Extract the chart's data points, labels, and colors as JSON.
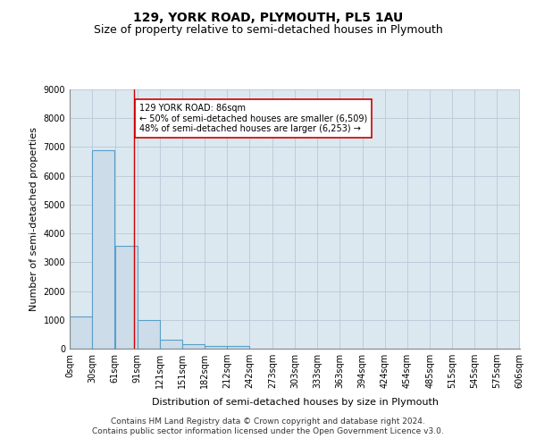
{
  "title": "129, YORK ROAD, PLYMOUTH, PL5 1AU",
  "subtitle": "Size of property relative to semi-detached houses in Plymouth",
  "xlabel": "Distribution of semi-detached houses by size in Plymouth",
  "ylabel": "Number of semi-detached properties",
  "bar_values": [
    1130,
    6880,
    3560,
    1000,
    320,
    140,
    100,
    100,
    0,
    0,
    0,
    0,
    0,
    0,
    0,
    0,
    0,
    0,
    0,
    0
  ],
  "bar_left_edges": [
    0,
    30,
    61,
    91,
    121,
    151,
    182,
    212,
    242,
    273,
    303,
    333,
    363,
    394,
    424,
    454,
    485,
    515,
    545,
    575
  ],
  "bar_widths": [
    30,
    30,
    30,
    30,
    30,
    30,
    30,
    30,
    30,
    30,
    30,
    30,
    30,
    30,
    30,
    30,
    30,
    30,
    30,
    30
  ],
  "tick_labels": [
    "0sqm",
    "30sqm",
    "61sqm",
    "91sqm",
    "121sqm",
    "151sqm",
    "182sqm",
    "212sqm",
    "242sqm",
    "273sqm",
    "303sqm",
    "333sqm",
    "363sqm",
    "394sqm",
    "424sqm",
    "454sqm",
    "485sqm",
    "515sqm",
    "545sqm",
    "575sqm",
    "606sqm"
  ],
  "ylim": [
    0,
    9000
  ],
  "yticks": [
    0,
    1000,
    2000,
    3000,
    4000,
    5000,
    6000,
    7000,
    8000,
    9000
  ],
  "bar_color": "#ccdce8",
  "bar_edge_color": "#5b9ec9",
  "vline_x": 86,
  "vline_color": "#cc0000",
  "annotation_text": "129 YORK ROAD: 86sqm\n← 50% of semi-detached houses are smaller (6,509)\n48% of semi-detached houses are larger (6,253) →",
  "annotation_box_color": "#ffffff",
  "annotation_box_edge": "#cc0000",
  "footer_line1": "Contains HM Land Registry data © Crown copyright and database right 2024.",
  "footer_line2": "Contains public sector information licensed under the Open Government Licence v3.0.",
  "bg_color": "#ffffff",
  "plot_bg_color": "#dce8f0",
  "grid_color": "#b8c8d8",
  "title_fontsize": 10,
  "subtitle_fontsize": 9,
  "axis_label_fontsize": 8,
  "tick_fontsize": 7,
  "annotation_fontsize": 7,
  "footer_fontsize": 6.5
}
